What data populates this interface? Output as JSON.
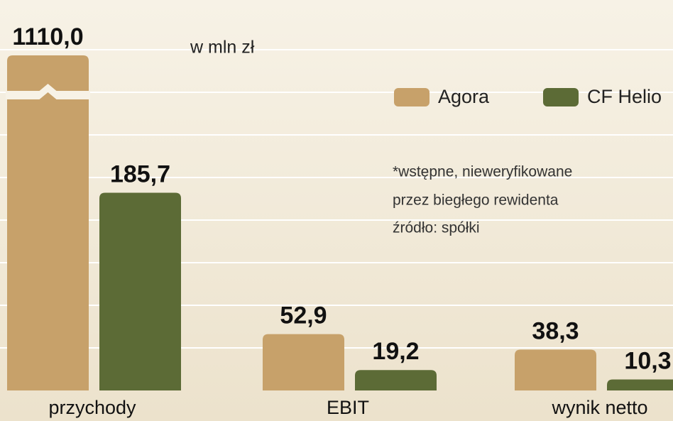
{
  "chart_data": {
    "type": "bar",
    "subtitle": "w mln zł",
    "categories": [
      "przychody",
      "EBIT",
      "wynik netto"
    ],
    "series": [
      {
        "name": "Agora",
        "color": "#c7a16a",
        "values": [
          1110.0,
          52.9,
          38.3
        ],
        "value_labels": [
          "1110,0",
          "52,9",
          "38,3"
        ]
      },
      {
        "name": "CF Helio",
        "color": "#5c6b36",
        "values": [
          185.7,
          19.2,
          10.3
        ],
        "value_labels": [
          "185,7",
          "19,2",
          "10,3"
        ]
      }
    ],
    "notes": [
      "*wstępne, nieweryfikowane",
      "przez biegłego rewidenta",
      "źródło: spółki"
    ],
    "ylim": [
      0,
      360
    ],
    "yticks": [
      40,
      80,
      120,
      160,
      200,
      240,
      280,
      320
    ],
    "grid": true,
    "axis_break": true,
    "break_label_color": "#b5123a",
    "legend": "top-right"
  }
}
